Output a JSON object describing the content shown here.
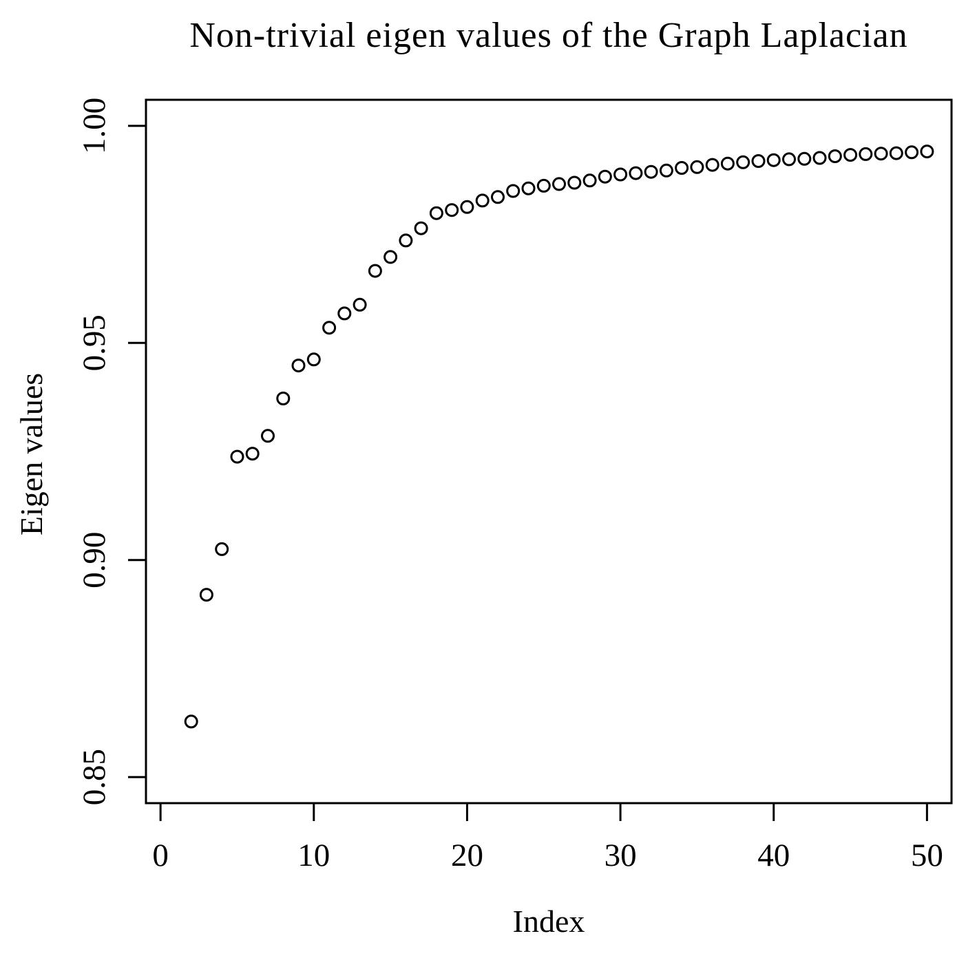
{
  "chart_data": {
    "type": "scatter",
    "title": "Non-trivial eigen values of the Graph Laplacian",
    "xlabel": "Index",
    "ylabel": "Eigen values",
    "marker": "open-circle",
    "marker_color": "#000000",
    "axis_color": "#000000",
    "background_color": "#ffffff",
    "grid": false,
    "legend": null,
    "xlim": [
      -0.95,
      51.6
    ],
    "ylim": [
      0.844,
      1.006
    ],
    "xticks": [
      0,
      10,
      20,
      30,
      40,
      50
    ],
    "xtick_labels": [
      "0",
      "10",
      "20",
      "30",
      "40",
      "50"
    ],
    "yticks": [
      0.85,
      0.9,
      0.95,
      1.0
    ],
    "ytick_labels": [
      "0.85",
      "0.90",
      "0.95",
      "1.00"
    ],
    "x": [
      2,
      3,
      4,
      5,
      6,
      7,
      8,
      9,
      10,
      11,
      12,
      13,
      14,
      15,
      16,
      17,
      18,
      19,
      20,
      21,
      22,
      23,
      24,
      25,
      26,
      27,
      28,
      29,
      30,
      31,
      32,
      33,
      34,
      35,
      36,
      37,
      38,
      39,
      40,
      41,
      42,
      43,
      44,
      45,
      46,
      47,
      48,
      49,
      50
    ],
    "y": [
      0.8628,
      0.892,
      0.9025,
      0.9238,
      0.9245,
      0.9286,
      0.9372,
      0.9448,
      0.9462,
      0.9535,
      0.9568,
      0.9588,
      0.9666,
      0.9698,
      0.9736,
      0.9764,
      0.9799,
      0.9806,
      0.9813,
      0.9828,
      0.9836,
      0.985,
      0.9856,
      0.9862,
      0.9866,
      0.9869,
      0.9874,
      0.9883,
      0.9888,
      0.9891,
      0.9894,
      0.9897,
      0.9903,
      0.9905,
      0.991,
      0.9913,
      0.9916,
      0.9919,
      0.9921,
      0.9923,
      0.9924,
      0.9926,
      0.993,
      0.9933,
      0.9935,
      0.9936,
      0.9937,
      0.9939,
      0.9941
    ]
  }
}
